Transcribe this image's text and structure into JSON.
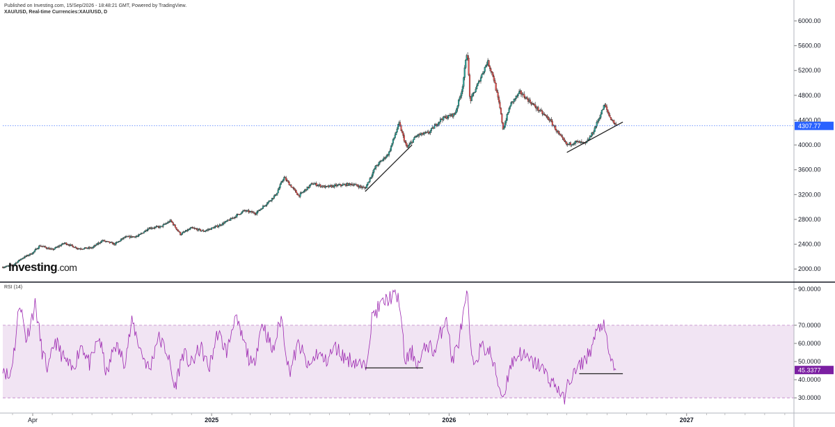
{
  "header": {
    "published": "Published on Investing.com, 15/Sep/2026 - 18:48:21 GMT, Powered by TradingView.",
    "symbol": "XAU/USD, Real-time Currencies:XAU/USD, D"
  },
  "watermark": {
    "brand": "Investing",
    "suffix": ".com"
  },
  "colors": {
    "up": "#26a69a",
    "down": "#ef5350",
    "rsi_line": "#9c27b0",
    "rsi_band": "#f1e4f3",
    "price_label": "#2962ff",
    "rsi_label": "#7b1fa2",
    "trendline": "#222222"
  },
  "chart_data": [
    {
      "type": "line",
      "name": "XAU/USD",
      "yticks": [
        "6000.00",
        "5600.00",
        "5200.00",
        "4800.00",
        "4400.00",
        "4000.00",
        "3600.00",
        "3200.00",
        "2800.00",
        "2400.00",
        "2000.00"
      ],
      "ylim": [
        1800,
        6000
      ],
      "last_price": "4307.77",
      "last_value": 4307.77,
      "x_labels": [
        "Apr",
        "2025",
        "2026",
        "2027"
      ],
      "x_positions_date": [
        "2024-04-01",
        "2025-01-01",
        "2026-01-01",
        "2027-01-01"
      ],
      "x_range_date": [
        "2024-02-15",
        "2027-06-15"
      ],
      "points": [
        [
          "2024-02-15",
          2030
        ],
        [
          "2024-03-01",
          2060
        ],
        [
          "2024-03-15",
          2170
        ],
        [
          "2024-04-01",
          2260
        ],
        [
          "2024-04-12",
          2380
        ],
        [
          "2024-05-01",
          2310
        ],
        [
          "2024-05-20",
          2420
        ],
        [
          "2024-06-10",
          2330
        ],
        [
          "2024-07-01",
          2340
        ],
        [
          "2024-07-17",
          2460
        ],
        [
          "2024-08-05",
          2400
        ],
        [
          "2024-08-20",
          2510
        ],
        [
          "2024-09-10",
          2530
        ],
        [
          "2024-09-26",
          2660
        ],
        [
          "2024-10-15",
          2680
        ],
        [
          "2024-10-30",
          2780
        ],
        [
          "2024-11-14",
          2560
        ],
        [
          "2024-12-01",
          2660
        ],
        [
          "2024-12-20",
          2610
        ],
        [
          "2025-01-10",
          2690
        ],
        [
          "2025-01-30",
          2800
        ],
        [
          "2025-02-20",
          2940
        ],
        [
          "2025-03-10",
          2900
        ],
        [
          "2025-03-31",
          3100
        ],
        [
          "2025-04-10",
          3200
        ],
        [
          "2025-04-22",
          3480
        ],
        [
          "2025-05-15",
          3180
        ],
        [
          "2025-06-05",
          3380
        ],
        [
          "2025-06-25",
          3320
        ],
        [
          "2025-07-15",
          3350
        ],
        [
          "2025-08-05",
          3370
        ],
        [
          "2025-08-25",
          3300
        ],
        [
          "2025-09-10",
          3650
        ],
        [
          "2025-09-30",
          3860
        ],
        [
          "2025-10-16",
          4350
        ],
        [
          "2025-10-28",
          3950
        ],
        [
          "2025-11-12",
          4150
        ],
        [
          "2025-12-01",
          4200
        ],
        [
          "2025-12-20",
          4420
        ],
        [
          "2026-01-10",
          4500
        ],
        [
          "2026-01-21",
          4900
        ],
        [
          "2026-01-29",
          5550
        ],
        [
          "2026-02-02",
          4700
        ],
        [
          "2026-02-15",
          5000
        ],
        [
          "2026-03-01",
          5350
        ],
        [
          "2026-03-10",
          5100
        ],
        [
          "2026-03-20",
          4600
        ],
        [
          "2026-03-25",
          4250
        ],
        [
          "2026-04-05",
          4650
        ],
        [
          "2026-04-20",
          4850
        ],
        [
          "2026-05-05",
          4700
        ],
        [
          "2026-05-20",
          4550
        ],
        [
          "2026-06-05",
          4400
        ],
        [
          "2026-06-20",
          4150
        ],
        [
          "2026-07-01",
          4000
        ],
        [
          "2026-07-15",
          4050
        ],
        [
          "2026-07-30",
          4020
        ],
        [
          "2026-08-10",
          4200
        ],
        [
          "2026-08-20",
          4450
        ],
        [
          "2026-08-28",
          4650
        ],
        [
          "2026-09-05",
          4450
        ],
        [
          "2026-09-15",
          4307.77
        ]
      ],
      "trendlines": [
        [
          [
            "2025-08-25",
            3250
          ],
          [
            "2025-11-05",
            4000
          ]
        ],
        [
          [
            "2026-07-01",
            3880
          ],
          [
            "2026-09-25",
            4370
          ]
        ]
      ]
    },
    {
      "type": "line",
      "name": "RSI (14)",
      "label": "RSI (14)",
      "yticks": [
        "90.0000",
        "70.0000",
        "60.0000",
        "50.0000",
        "40.0000",
        "30.0000"
      ],
      "ylim": [
        22,
        93
      ],
      "band": [
        30,
        70
      ],
      "last_value_label": "45.3377",
      "last_value": 45.3377,
      "points": [
        [
          "2024-02-15",
          48
        ],
        [
          "2024-02-25",
          40
        ],
        [
          "2024-03-05",
          60
        ],
        [
          "2024-03-12",
          84
        ],
        [
          "2024-03-22",
          62
        ],
        [
          "2024-04-05",
          82
        ],
        [
          "2024-04-15",
          56
        ],
        [
          "2024-04-25",
          45
        ],
        [
          "2024-05-05",
          62
        ],
        [
          "2024-05-18",
          52
        ],
        [
          "2024-06-01",
          45
        ],
        [
          "2024-06-15",
          60
        ],
        [
          "2024-06-28",
          48
        ],
        [
          "2024-07-12",
          64
        ],
        [
          "2024-07-24",
          42
        ],
        [
          "2024-08-05",
          60
        ],
        [
          "2024-08-20",
          50
        ],
        [
          "2024-09-01",
          72
        ],
        [
          "2024-09-15",
          55
        ],
        [
          "2024-09-28",
          45
        ],
        [
          "2024-10-10",
          64
        ],
        [
          "2024-10-25",
          55
        ],
        [
          "2024-11-05",
          35
        ],
        [
          "2024-11-18",
          55
        ],
        [
          "2024-11-30",
          48
        ],
        [
          "2024-12-15",
          58
        ],
        [
          "2024-12-28",
          46
        ],
        [
          "2025-01-10",
          66
        ],
        [
          "2025-01-25",
          55
        ],
        [
          "2025-02-05",
          75
        ],
        [
          "2025-02-20",
          60
        ],
        [
          "2025-03-05",
          46
        ],
        [
          "2025-03-20",
          72
        ],
        [
          "2025-04-05",
          55
        ],
        [
          "2025-04-18",
          75
        ],
        [
          "2025-04-30",
          44
        ],
        [
          "2025-05-15",
          60
        ],
        [
          "2025-05-30",
          46
        ],
        [
          "2025-06-12",
          55
        ],
        [
          "2025-06-25",
          50
        ],
        [
          "2025-07-10",
          58
        ],
        [
          "2025-07-25",
          52
        ],
        [
          "2025-08-10",
          50
        ],
        [
          "2025-08-25",
          46
        ],
        [
          "2025-09-05",
          75
        ],
        [
          "2025-09-20",
          82
        ],
        [
          "2025-10-05",
          86
        ],
        [
          "2025-10-16",
          85
        ],
        [
          "2025-10-25",
          50
        ],
        [
          "2025-11-05",
          55
        ],
        [
          "2025-11-15",
          48
        ],
        [
          "2025-11-28",
          60
        ],
        [
          "2025-12-10",
          55
        ],
        [
          "2025-12-28",
          76
        ],
        [
          "2026-01-05",
          50
        ],
        [
          "2026-01-15",
          60
        ],
        [
          "2026-01-29",
          87
        ],
        [
          "2026-02-05",
          48
        ],
        [
          "2026-02-20",
          58
        ],
        [
          "2026-03-05",
          55
        ],
        [
          "2026-03-20",
          35
        ],
        [
          "2026-03-25",
          30
        ],
        [
          "2026-04-05",
          48
        ],
        [
          "2026-04-20",
          55
        ],
        [
          "2026-05-05",
          50
        ],
        [
          "2026-05-20",
          48
        ],
        [
          "2026-06-05",
          40
        ],
        [
          "2026-06-20",
          34
        ],
        [
          "2026-06-25",
          28
        ],
        [
          "2026-07-05",
          40
        ],
        [
          "2026-07-20",
          47
        ],
        [
          "2026-08-05",
          55
        ],
        [
          "2026-08-15",
          65
        ],
        [
          "2026-08-25",
          72
        ],
        [
          "2026-09-05",
          52
        ],
        [
          "2026-09-15",
          45.3
        ]
      ],
      "trendlines": [
        [
          [
            "2025-08-25",
            46.5
          ],
          [
            "2025-11-22",
            46.5
          ]
        ],
        [
          [
            "2026-07-20",
            43.3
          ],
          [
            "2026-09-25",
            43.3
          ]
        ]
      ]
    }
  ]
}
